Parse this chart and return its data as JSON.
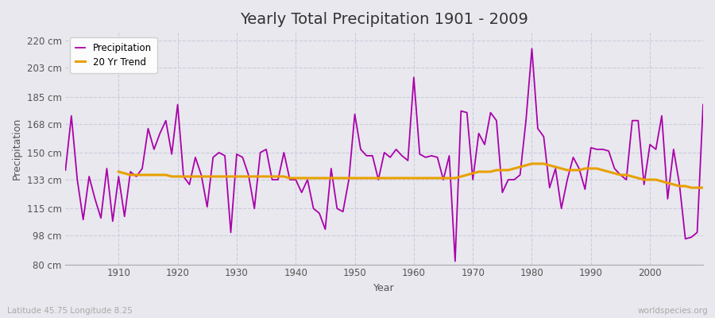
{
  "title": "Yearly Total Precipitation 1901 - 2009",
  "xlabel": "Year",
  "ylabel": "Precipitation",
  "bottom_left_label": "Latitude 45.75 Longitude 8.25",
  "bottom_right_label": "worldspecies.org",
  "precip_color": "#aa00aa",
  "trend_color": "#e8a000",
  "fig_bg_color": "#e8e8ee",
  "ax_bg_color": "#e8e8ee",
  "grid_color": "#ccccdd",
  "ylim": [
    80,
    225
  ],
  "yticks": [
    80,
    98,
    115,
    133,
    150,
    168,
    185,
    203,
    220
  ],
  "ytick_labels": [
    "80 cm",
    "98 cm",
    "115 cm",
    "133 cm",
    "150 cm",
    "168 cm",
    "185 cm",
    "203 cm",
    "220 cm"
  ],
  "years": [
    1901,
    1902,
    1903,
    1904,
    1905,
    1906,
    1907,
    1908,
    1909,
    1910,
    1911,
    1912,
    1913,
    1914,
    1915,
    1916,
    1917,
    1918,
    1919,
    1920,
    1921,
    1922,
    1923,
    1924,
    1925,
    1926,
    1927,
    1928,
    1929,
    1930,
    1931,
    1932,
    1933,
    1934,
    1935,
    1936,
    1937,
    1938,
    1939,
    1940,
    1941,
    1942,
    1943,
    1944,
    1945,
    1946,
    1947,
    1948,
    1949,
    1950,
    1951,
    1952,
    1953,
    1954,
    1955,
    1956,
    1957,
    1958,
    1959,
    1960,
    1961,
    1962,
    1963,
    1964,
    1965,
    1966,
    1967,
    1968,
    1969,
    1970,
    1971,
    1972,
    1973,
    1974,
    1975,
    1976,
    1977,
    1978,
    1979,
    1980,
    1981,
    1982,
    1983,
    1984,
    1985,
    1986,
    1987,
    1988,
    1989,
    1990,
    1991,
    1992,
    1993,
    1994,
    1995,
    1996,
    1997,
    1998,
    1999,
    2000,
    2001,
    2002,
    2003,
    2004,
    2005,
    2006,
    2007,
    2008,
    2009
  ],
  "precip": [
    139,
    173,
    133,
    108,
    135,
    121,
    109,
    140,
    107,
    135,
    110,
    138,
    135,
    140,
    165,
    152,
    162,
    170,
    149,
    180,
    135,
    130,
    147,
    136,
    116,
    147,
    150,
    148,
    100,
    149,
    147,
    136,
    115,
    150,
    152,
    133,
    133,
    150,
    133,
    133,
    125,
    133,
    115,
    112,
    102,
    140,
    115,
    113,
    133,
    174,
    152,
    148,
    148,
    133,
    150,
    147,
    152,
    148,
    145,
    197,
    149,
    147,
    148,
    147,
    133,
    148,
    82,
    176,
    175,
    133,
    162,
    155,
    175,
    170,
    125,
    133,
    133,
    136,
    170,
    215,
    165,
    160,
    128,
    140,
    115,
    133,
    147,
    140,
    127,
    153,
    152,
    152,
    151,
    140,
    136,
    133,
    170,
    170,
    130,
    155,
    152,
    173,
    121,
    152,
    130,
    96,
    97,
    100,
    180
  ],
  "trend": [
    null,
    null,
    null,
    null,
    null,
    null,
    null,
    null,
    null,
    138,
    137,
    136,
    136,
    136,
    136,
    136,
    136,
    136,
    135,
    135,
    135,
    135,
    135,
    135,
    135,
    135,
    135,
    135,
    135,
    135,
    135,
    135,
    135,
    135,
    135,
    135,
    135,
    135,
    134,
    134,
    134,
    134,
    134,
    134,
    134,
    134,
    134,
    134,
    134,
    134,
    134,
    134,
    134,
    134,
    134,
    134,
    134,
    134,
    134,
    134,
    134,
    134,
    134,
    134,
    134,
    134,
    134,
    135,
    136,
    137,
    138,
    138,
    138,
    139,
    139,
    139,
    140,
    141,
    142,
    143,
    143,
    143,
    142,
    141,
    140,
    139,
    139,
    139,
    140,
    140,
    140,
    139,
    138,
    137,
    136,
    136,
    135,
    134,
    133,
    133,
    133,
    132,
    131,
    130,
    129,
    129,
    128,
    128,
    128
  ]
}
